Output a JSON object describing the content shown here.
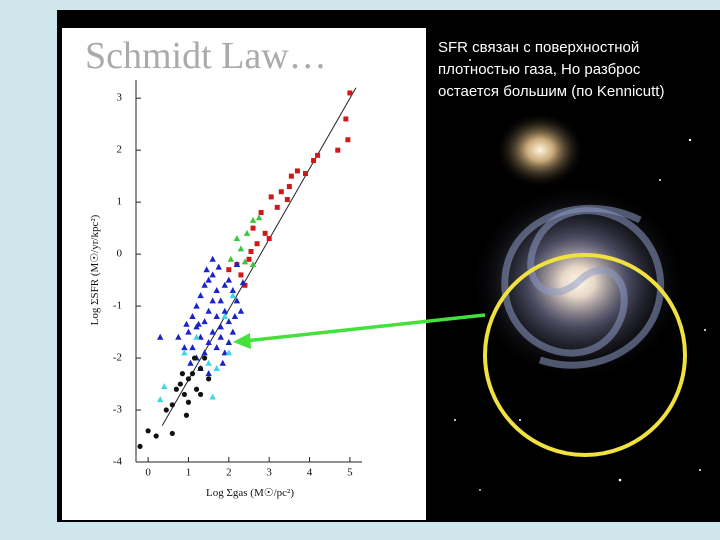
{
  "title": "Schmidt Law…",
  "annotation_lines": [
    "SFR связан с поверхностной",
    "плотностью газа, Но разброс",
    "остается большим (по Kennicutt)"
  ],
  "chart_data": {
    "type": "scatter",
    "x_label": "Log Σgas (M☉/pc²)",
    "y_label": "Log ΣSFR (M☉/yr/kpc²)",
    "xlim": [
      -0.3,
      5.3
    ],
    "ylim": [
      -4,
      3.35
    ],
    "xticks": [
      0,
      1,
      2,
      3,
      4,
      5
    ],
    "yticks": [
      -4,
      -3,
      -2,
      -1,
      0,
      1,
      2,
      3
    ],
    "fit_line": {
      "x": [
        0.35,
        5.15
      ],
      "y": [
        -3.3,
        3.2
      ],
      "color": "#222"
    },
    "series": [
      {
        "color": "#d01818",
        "marker": "square",
        "x": [
          5.0,
          4.9,
          4.95,
          4.7,
          4.2,
          4.1,
          3.9,
          3.7,
          3.5,
          3.3,
          3.55,
          3.2,
          2.8,
          2.9,
          2.6,
          3.0,
          2.7,
          2.5,
          2.3,
          2.2,
          2.0,
          2.4,
          3.45,
          3.05,
          2.55
        ],
        "values": [
          3.1,
          2.6,
          2.2,
          2.0,
          1.9,
          1.8,
          1.55,
          1.6,
          1.3,
          1.2,
          1.5,
          0.9,
          0.8,
          0.4,
          0.5,
          0.3,
          0.2,
          -0.1,
          -0.4,
          -0.2,
          -0.3,
          -0.6,
          1.05,
          1.1,
          0.05
        ]
      },
      {
        "color": "#3ec43e",
        "marker": "triangle",
        "x": [
          2.6,
          2.75,
          2.2,
          2.45,
          2.3,
          2.6,
          2.05,
          2.4
        ],
        "values": [
          0.65,
          0.7,
          0.3,
          0.4,
          0.1,
          -0.2,
          -0.1,
          -0.15
        ]
      },
      {
        "color": "#1a22c8",
        "marker": "triangle",
        "x": [
          1.0,
          1.1,
          1.2,
          1.3,
          1.4,
          1.5,
          1.6,
          1.7,
          1.8,
          1.9,
          2.0,
          2.1,
          2.2,
          2.3,
          1.2,
          1.3,
          1.4,
          1.5,
          1.6,
          1.7,
          1.8,
          1.9,
          2.0,
          2.1,
          1.1,
          1.2,
          1.4,
          1.5,
          1.6,
          1.7,
          1.8,
          1.9,
          2.0,
          1.3,
          1.5,
          0.9,
          0.75,
          0.3,
          2.2,
          1.6,
          1.45,
          1.75,
          2.35,
          1.05,
          1.85,
          1.25,
          0.95,
          2.15
        ],
        "values": [
          -1.5,
          -1.2,
          -1.0,
          -0.8,
          -0.6,
          -0.5,
          -0.4,
          -0.7,
          -0.9,
          -0.6,
          -0.5,
          -0.7,
          -0.9,
          -1.1,
          -1.4,
          -1.6,
          -1.3,
          -1.1,
          -0.9,
          -1.2,
          -1.4,
          -1.1,
          -1.3,
          -1.5,
          -1.8,
          -2.0,
          -1.9,
          -1.7,
          -1.5,
          -1.8,
          -1.6,
          -1.9,
          -1.7,
          -2.2,
          -2.3,
          -1.8,
          -1.6,
          -1.6,
          -0.2,
          -0.1,
          -0.3,
          -0.25,
          -0.55,
          -2.1,
          -2.1,
          -1.35,
          -1.35,
          -1.2
        ]
      },
      {
        "color": "#3fd6e0",
        "marker": "triangle",
        "x": [
          0.4,
          0.3,
          1.5,
          1.7,
          1.6,
          2.0,
          1.2,
          1.9,
          2.1,
          0.9
        ],
        "values": [
          -2.55,
          -2.8,
          -2.1,
          -2.2,
          -2.75,
          -1.9,
          -1.6,
          -1.2,
          -0.8,
          -1.9
        ]
      },
      {
        "color": "#111111",
        "marker": "circle",
        "x": [
          -0.2,
          0.0,
          0.2,
          0.6,
          0.45,
          0.6,
          0.7,
          0.8,
          0.9,
          1.0,
          1.1,
          1.0,
          1.2,
          1.3,
          0.85,
          1.4,
          1.15,
          0.95,
          1.5,
          1.3
        ],
        "values": [
          -3.7,
          -3.4,
          -3.5,
          -3.45,
          -3.0,
          -2.9,
          -2.6,
          -2.5,
          -2.7,
          -2.4,
          -2.3,
          -2.85,
          -2.6,
          -2.2,
          -2.3,
          -2.0,
          -2.0,
          -3.1,
          -2.4,
          -2.7
        ]
      }
    ]
  }
}
